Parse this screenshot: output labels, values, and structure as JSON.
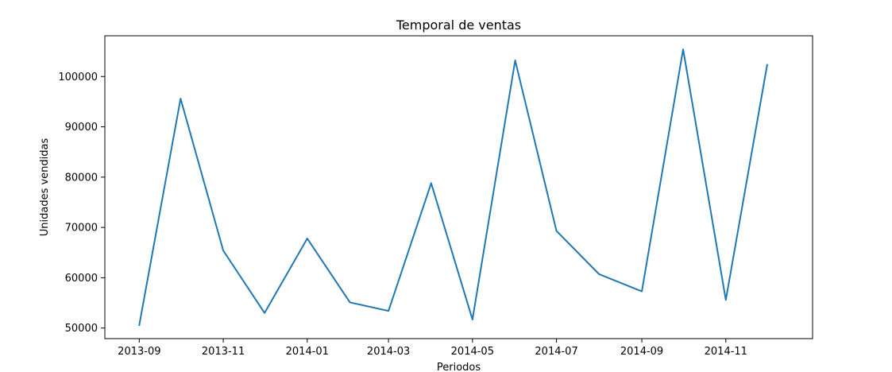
{
  "chart_data": {
    "type": "line",
    "title": "Temporal de ventas",
    "xlabel": "Periodos",
    "ylabel": "Unidades vendidas",
    "x": [
      "2013-09",
      "2013-10",
      "2013-11",
      "2013-12",
      "2014-01",
      "2014-02",
      "2014-03",
      "2014-04",
      "2014-05",
      "2014-06",
      "2014-07",
      "2014-08",
      "2014-09",
      "2014-10",
      "2014-11",
      "2014-12"
    ],
    "series": [
      {
        "values": [
          50600,
          95600,
          65400,
          53000,
          67800,
          55100,
          53400,
          78800,
          51700,
          103200,
          69300,
          60700,
          57300,
          105400,
          55600,
          102300
        ]
      }
    ],
    "xticks": [
      "2013-09",
      "2013-11",
      "2014-01",
      "2014-03",
      "2014-05",
      "2014-07",
      "2014-09",
      "2014-11"
    ],
    "yticks": [
      50000,
      60000,
      70000,
      80000,
      90000,
      100000
    ],
    "xlim": [
      "2013-08-07",
      "2015-01-03"
    ],
    "ylim": [
      47900,
      108100
    ],
    "grid": false,
    "line_color": "#1f77b4"
  }
}
